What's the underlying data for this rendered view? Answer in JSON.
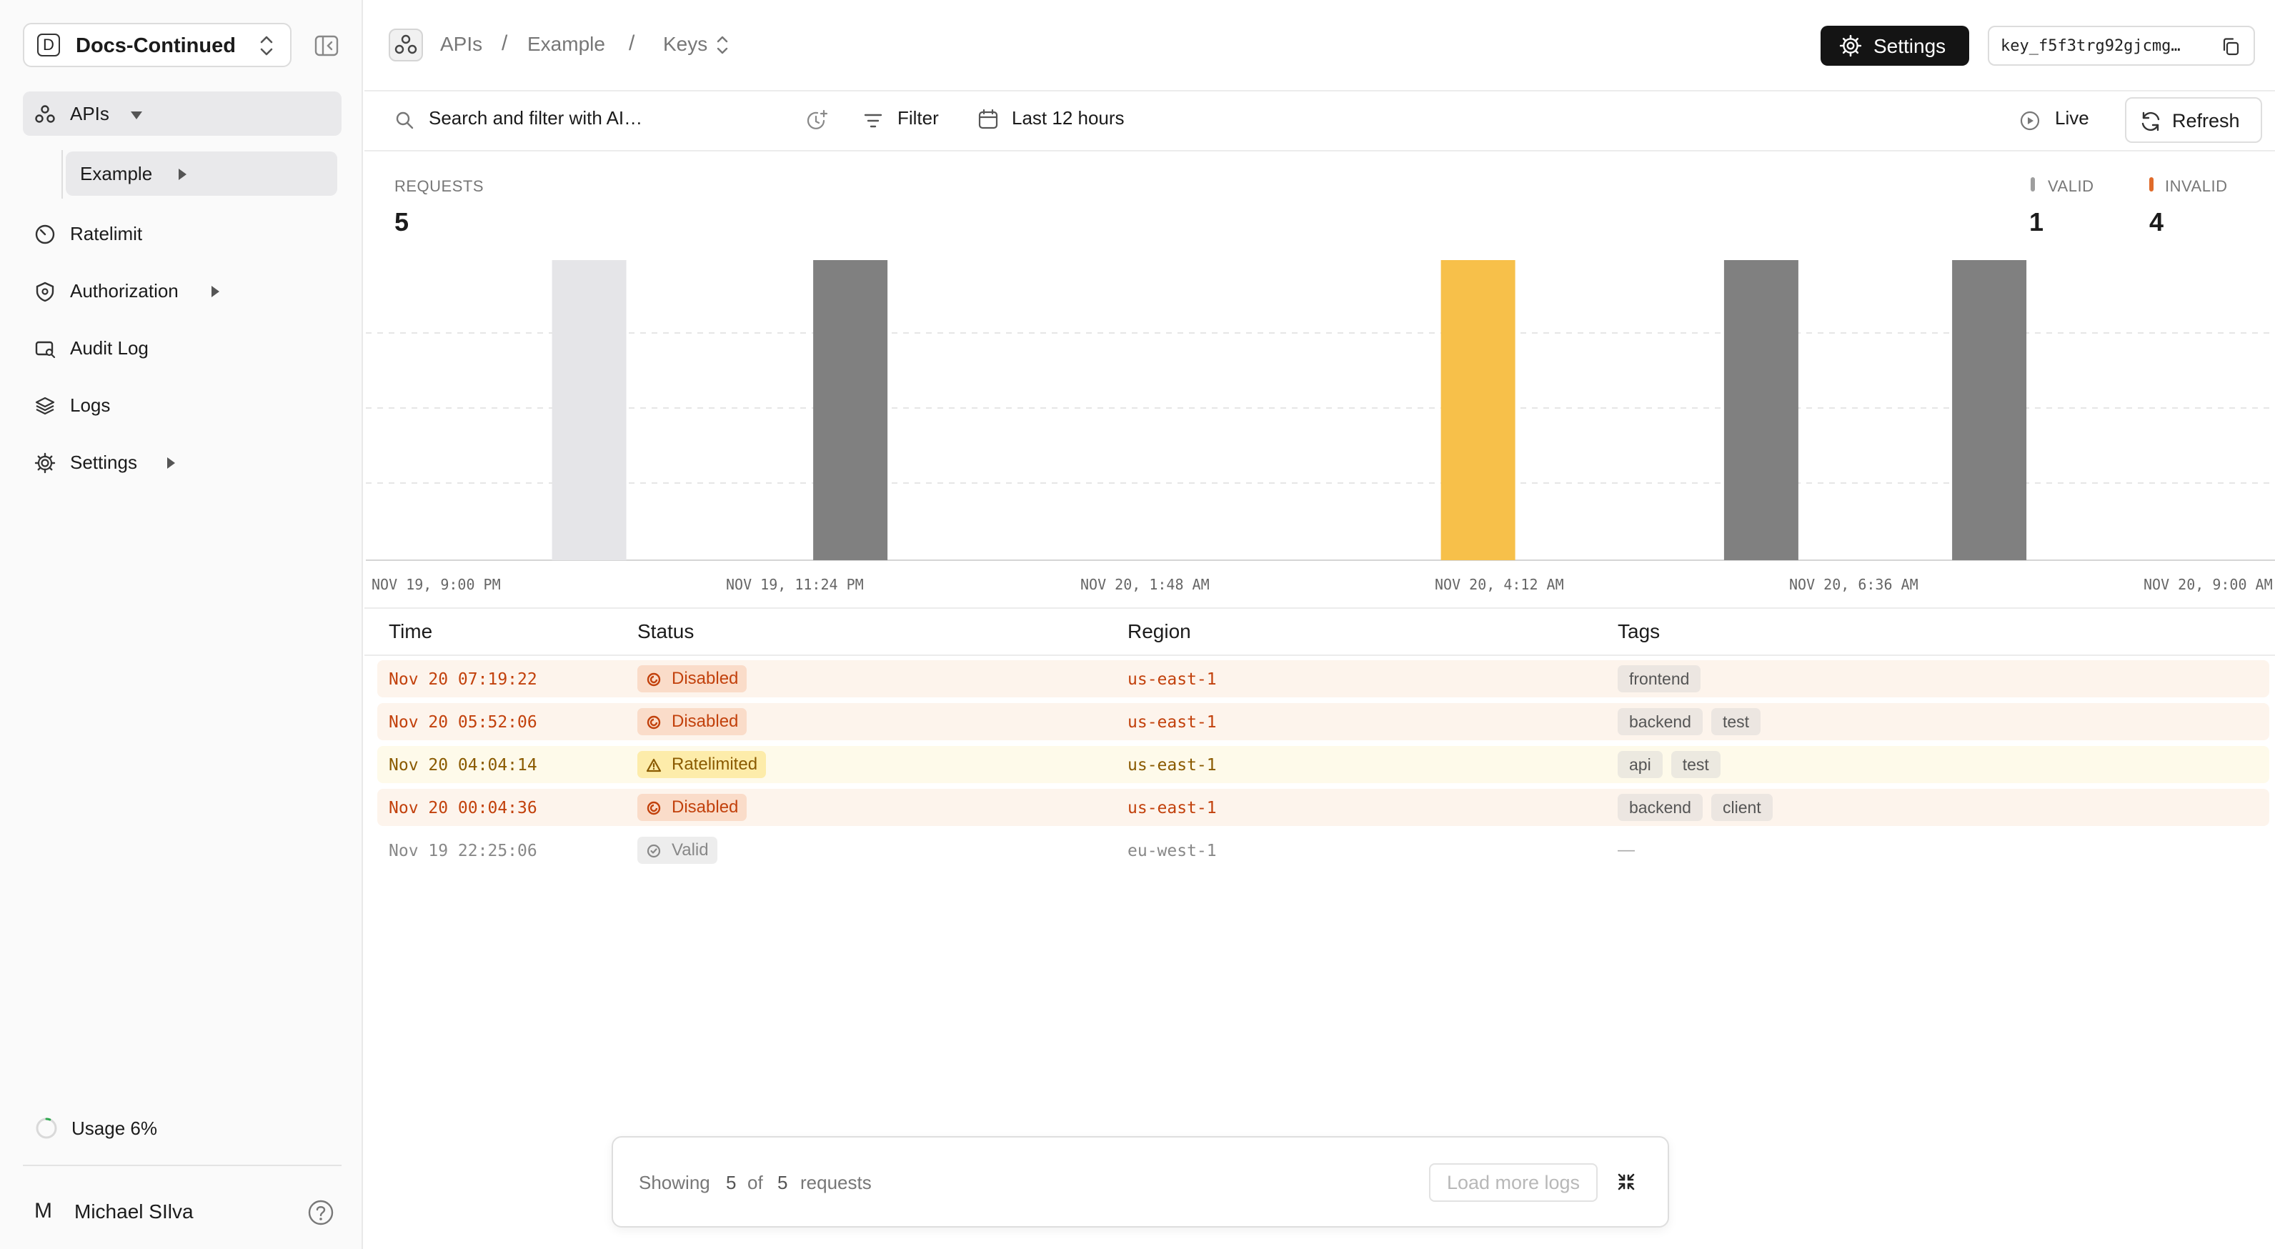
{
  "workspace": {
    "initial": "D",
    "name": "Docs-Continued"
  },
  "sidebar": {
    "items": [
      {
        "label": "APIs",
        "icon": "apis-icon"
      },
      {
        "label": "Example"
      },
      {
        "label": "Ratelimit",
        "icon": "gauge-icon"
      },
      {
        "label": "Authorization",
        "icon": "shield-icon"
      },
      {
        "label": "Audit Log",
        "icon": "audit-log-icon"
      },
      {
        "label": "Logs",
        "icon": "layers-icon"
      },
      {
        "label": "Settings",
        "icon": "gear-icon"
      }
    ],
    "usage_label": "Usage 6%",
    "usage_fraction": 0.06,
    "user": {
      "initial": "M",
      "name": "Michael SIlva"
    }
  },
  "breadcrumb": {
    "apis": "APIs",
    "example": "Example",
    "keys": "Keys",
    "sep": "/"
  },
  "header": {
    "settings_label": "Settings",
    "key_id": "key_f5f3trg92gjcmg…"
  },
  "filterbar": {
    "search_placeholder": "Search and filter with AI…",
    "filter_label": "Filter",
    "time_range": "Last 12 hours",
    "live_label": "Live",
    "refresh_label": "Refresh"
  },
  "stats": {
    "requests_label": "REQUESTS",
    "requests_value": "5",
    "valid_label": "VALID",
    "valid_value": "1",
    "invalid_label": "INVALID",
    "invalid_value": "4"
  },
  "chart_data": {
    "type": "bar",
    "title": "REQUESTS",
    "x_ticks": [
      "NOV 19, 9:00 PM",
      "NOV 19, 11:24 PM",
      "NOV 20, 1:48 AM",
      "NOV 20, 4:12 AM",
      "NOV 20, 6:36 AM",
      "NOV 20, 9:00 AM"
    ],
    "x_range": [
      0,
      12
    ],
    "ylim": [
      0,
      1
    ],
    "bars": [
      {
        "time": "Nov 19 22:25:06",
        "x": 1.42,
        "value": 1,
        "outcome": "Valid",
        "color": "#e5e5e8"
      },
      {
        "time": "Nov 20 00:04:36",
        "x": 3.08,
        "value": 1,
        "outcome": "Disabled",
        "color": "#808080"
      },
      {
        "time": "Nov 20 04:04:14",
        "x": 7.07,
        "value": 1,
        "outcome": "Ratelimited",
        "color": "#f7c04a"
      },
      {
        "time": "Nov 20 05:52:06",
        "x": 8.87,
        "value": 1,
        "outcome": "Disabled",
        "color": "#808080"
      },
      {
        "time": "Nov 20 07:19:22",
        "x": 10.32,
        "value": 1,
        "outcome": "Disabled",
        "color": "#808080"
      }
    ],
    "legend": [
      {
        "label": "VALID",
        "color": "#9e9e9e"
      },
      {
        "label": "INVALID",
        "color": "#e06b2a"
      }
    ]
  },
  "table": {
    "columns": [
      "Time",
      "Status",
      "Region",
      "Tags"
    ],
    "rows": [
      {
        "time": "Nov 20 07:19:22",
        "status": "Disabled",
        "region": "us-east-1",
        "tags": [
          "frontend"
        ]
      },
      {
        "time": "Nov 20 05:52:06",
        "status": "Disabled",
        "region": "us-east-1",
        "tags": [
          "backend",
          "test"
        ]
      },
      {
        "time": "Nov 20 04:04:14",
        "status": "Ratelimited",
        "region": "us-east-1",
        "tags": [
          "api",
          "test"
        ]
      },
      {
        "time": "Nov 20 00:04:36",
        "status": "Disabled",
        "region": "us-east-1",
        "tags": [
          "backend",
          "client"
        ]
      },
      {
        "time": "Nov 19 22:25:06",
        "status": "Valid",
        "region": "eu-west-1",
        "tags": [],
        "empty_tags": "—"
      }
    ]
  },
  "footer": {
    "showing": "Showing",
    "count": "5",
    "of": "of",
    "total": "5",
    "requests": "requests",
    "load_more": "Load more logs"
  }
}
